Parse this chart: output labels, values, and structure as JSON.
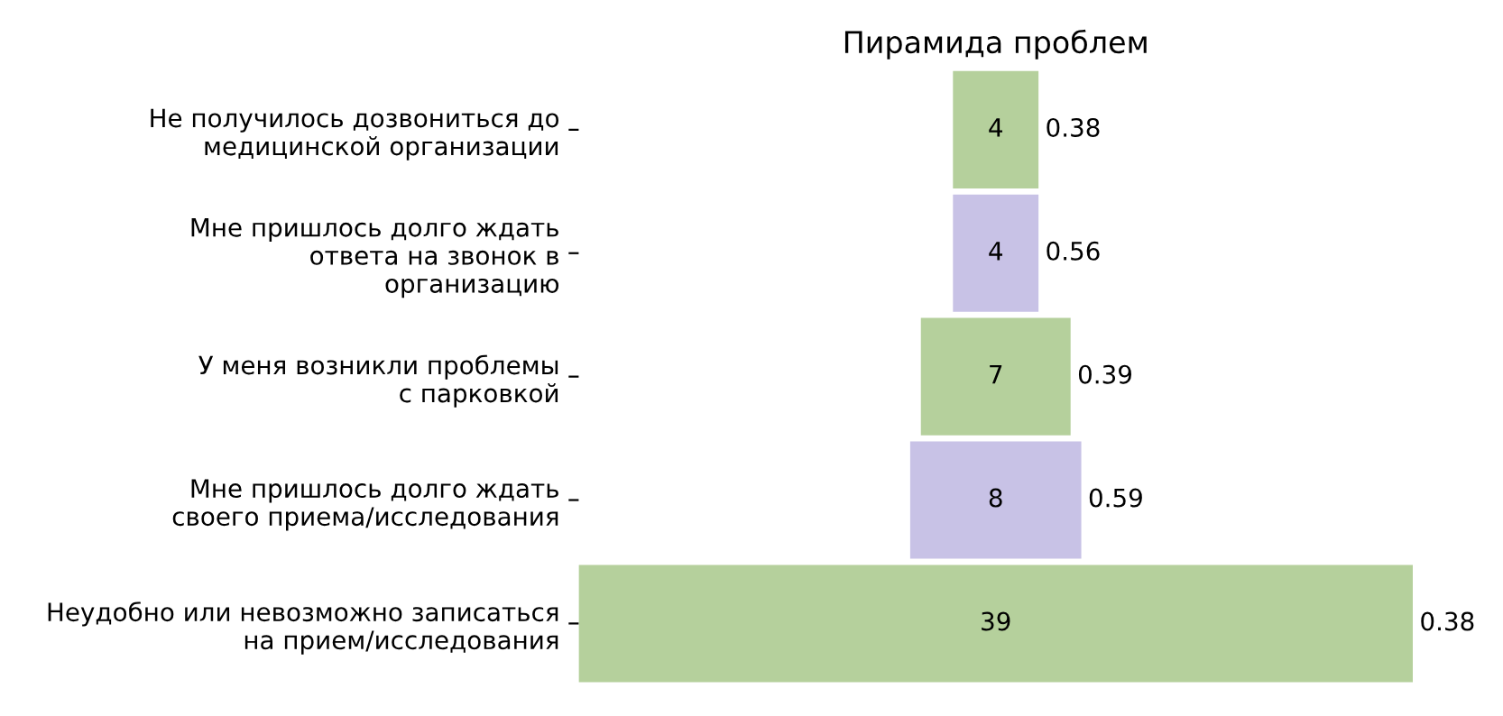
{
  "chart_data": {
    "type": "other",
    "title": "Пирамида проблем",
    "categories": [
      "Не получилось дозвониться до\nмедицинской организации",
      "Мне пришлось долго ждать\nответа на звонок в\nорганизацию",
      "У меня возникли проблемы\nс парковкой",
      "Мне пришлось долго ждать\nсвоего приема/исследования",
      "Неудобно или невозможно записаться\nна прием/исследования"
    ],
    "values": [
      4,
      4,
      7,
      8,
      39
    ],
    "colors": [
      "#b5d09c",
      "#c8c2e6",
      "#b5d09c",
      "#c8c2e6",
      "#b5d09c"
    ],
    "data_labels": true,
    "annotations": [
      {
        "text": "0.38",
        "y": "Не получилось дозвониться до\nмедицинской организации"
      },
      {
        "text": "0.56",
        "y": "Мне пришлось долго ждать\nответа на звонок в\nорганизацию"
      },
      {
        "text": "0.39",
        "y": "У меня возникли проблемы\nс парковкой"
      },
      {
        "text": "0.59",
        "y": "Мне пришлось долго ждать\nсвоего приема/исследования"
      },
      {
        "text": "0.38",
        "y": "Неудобно или невозможно записаться\nна прием/исследования"
      }
    ]
  }
}
